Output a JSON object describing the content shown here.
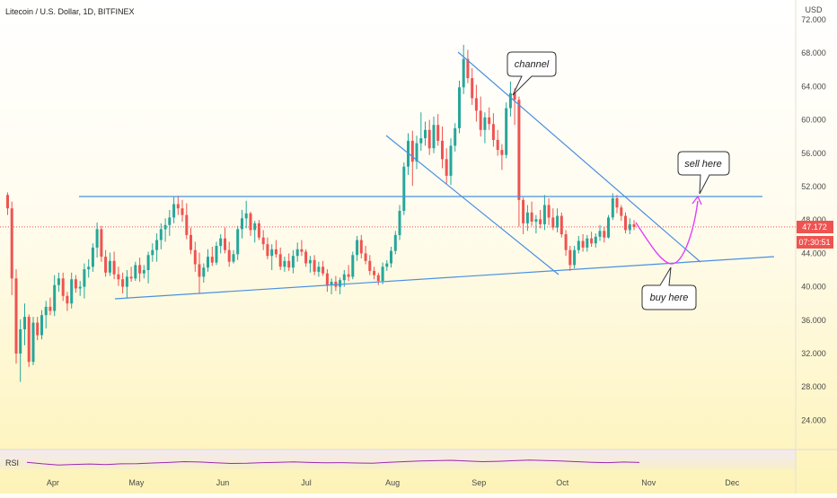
{
  "header": {
    "title": "Litecoin / U.S. Dollar, 1D, BITFINEX"
  },
  "chart_data": {
    "type": "candlestick",
    "title": "Litecoin / U.S. Dollar, 1D, BITFINEX",
    "y_axis": {
      "unit": "USD",
      "ticks": [
        "72.000",
        "68.000",
        "64.000",
        "60.000",
        "56.000",
        "52.000",
        "48.000",
        "44.000",
        "40.000",
        "36.000",
        "32.000",
        "28.000",
        "24.000"
      ],
      "ylim": [
        20.7,
        74.7
      ]
    },
    "x_axis": {
      "ticks": [
        "Apr",
        "May",
        "Jun",
        "Jul",
        "Aug",
        "Sep",
        "Oct",
        "Nov",
        "Dec"
      ],
      "xlim": [
        "2021-03-13",
        "2021-12-10"
      ]
    },
    "colors": {
      "up": "#26a69a",
      "down": "#ef5350",
      "trendline": "#4a90e2",
      "projection": "#e040fb",
      "rsi": "#9c27b0"
    },
    "price_tags": {
      "last_price": "47.172",
      "countdown": "07:30:51"
    },
    "candles_ohlc": [
      [
        51.0,
        51.3,
        48.6,
        49.4
      ],
      [
        49.4,
        50.2,
        39.0,
        41.0
      ],
      [
        41.0,
        42.1,
        30.8,
        32.0
      ],
      [
        32.0,
        36.1,
        28.6,
        34.9
      ],
      [
        34.9,
        38.0,
        33.0,
        36.4
      ],
      [
        36.4,
        36.7,
        30.4,
        31.0
      ],
      [
        31.0,
        36.4,
        30.6,
        35.7
      ],
      [
        35.7,
        36.4,
        33.6,
        34.2
      ],
      [
        34.2,
        37.2,
        33.7,
        36.6
      ],
      [
        36.6,
        38.3,
        35.0,
        37.6
      ],
      [
        37.6,
        38.7,
        36.6,
        37.1
      ],
      [
        37.1,
        41.4,
        36.5,
        40.2
      ],
      [
        40.2,
        41.7,
        39.4,
        41.0
      ],
      [
        41.0,
        41.7,
        38.3,
        38.9
      ],
      [
        38.9,
        39.4,
        37.1,
        38.0
      ],
      [
        38.0,
        41.7,
        37.4,
        40.9
      ],
      [
        40.9,
        41.4,
        39.3,
        39.8
      ],
      [
        39.8,
        40.7,
        38.9,
        40.0
      ],
      [
        40.0,
        42.8,
        38.6,
        42.1
      ],
      [
        42.1,
        43.3,
        41.1,
        42.4
      ],
      [
        42.4,
        45.2,
        41.8,
        44.7
      ],
      [
        44.7,
        47.7,
        43.5,
        46.9
      ],
      [
        46.9,
        47.3,
        43.0,
        43.6
      ],
      [
        43.6,
        44.4,
        41.2,
        41.7
      ],
      [
        41.7,
        44.1,
        41.3,
        43.1
      ],
      [
        43.1,
        44.2,
        40.9,
        41.5
      ],
      [
        41.5,
        42.4,
        40.1,
        40.9
      ],
      [
        40.9,
        41.7,
        39.2,
        40.0
      ],
      [
        40.0,
        42.0,
        38.6,
        41.2
      ],
      [
        41.2,
        42.4,
        40.6,
        41.0
      ],
      [
        41.0,
        43.0,
        40.7,
        42.6
      ],
      [
        42.6,
        43.5,
        40.6,
        41.6
      ],
      [
        41.6,
        42.6,
        41.0,
        42.0
      ],
      [
        42.0,
        44.2,
        40.4,
        43.8
      ],
      [
        43.8,
        45.2,
        43.0,
        44.4
      ],
      [
        44.4,
        46.4,
        43.0,
        45.6
      ],
      [
        45.6,
        47.6,
        44.5,
        46.9
      ],
      [
        46.9,
        48.2,
        45.4,
        47.4
      ],
      [
        47.4,
        49.2,
        46.1,
        48.3
      ],
      [
        48.3,
        50.8,
        47.6,
        49.9
      ],
      [
        49.9,
        50.9,
        48.6,
        49.4
      ],
      [
        49.4,
        50.4,
        47.8,
        48.6
      ],
      [
        48.6,
        50.0,
        45.7,
        46.2
      ],
      [
        46.2,
        47.1,
        43.9,
        44.4
      ],
      [
        44.4,
        45.4,
        41.8,
        42.7
      ],
      [
        42.7,
        44.1,
        39.2,
        41.2
      ],
      [
        41.2,
        42.8,
        40.5,
        42.3
      ],
      [
        42.3,
        44.5,
        41.8,
        43.6
      ],
      [
        43.6,
        44.8,
        42.5,
        42.9
      ],
      [
        42.9,
        45.4,
        42.6,
        44.9
      ],
      [
        44.9,
        46.3,
        44.0,
        45.8
      ],
      [
        45.8,
        47.1,
        44.0,
        44.4
      ],
      [
        44.4,
        45.4,
        42.4,
        43.0
      ],
      [
        43.0,
        44.4,
        42.8,
        43.9
      ],
      [
        43.9,
        47.3,
        43.2,
        46.9
      ],
      [
        46.9,
        49.2,
        45.8,
        48.2
      ],
      [
        48.2,
        50.3,
        47.0,
        48.8
      ],
      [
        48.8,
        49.0,
        46.1,
        46.8
      ],
      [
        46.8,
        47.9,
        45.3,
        47.6
      ],
      [
        47.6,
        48.0,
        45.6,
        45.9
      ],
      [
        45.9,
        46.8,
        44.4,
        45.1
      ],
      [
        45.1,
        45.9,
        43.3,
        43.7
      ],
      [
        43.7,
        45.1,
        42.0,
        44.5
      ],
      [
        44.5,
        45.6,
        43.5,
        43.9
      ],
      [
        43.9,
        44.7,
        42.0,
        42.4
      ],
      [
        42.4,
        43.6,
        41.8,
        43.1
      ],
      [
        43.1,
        44.0,
        41.9,
        42.3
      ],
      [
        42.3,
        44.4,
        41.6,
        43.7
      ],
      [
        43.7,
        45.3,
        43.0,
        44.5
      ],
      [
        44.5,
        45.6,
        43.7,
        44.2
      ],
      [
        44.2,
        44.5,
        42.4,
        42.8
      ],
      [
        42.8,
        43.7,
        41.7,
        43.2
      ],
      [
        43.2,
        43.8,
        41.4,
        41.8
      ],
      [
        41.8,
        43.0,
        41.2,
        42.4
      ],
      [
        42.4,
        43.1,
        41.3,
        41.6
      ],
      [
        41.6,
        42.1,
        39.4,
        40.2
      ],
      [
        40.2,
        41.0,
        39.1,
        40.6
      ],
      [
        40.6,
        41.3,
        39.5,
        40.0
      ],
      [
        40.0,
        41.1,
        39.1,
        40.8
      ],
      [
        40.8,
        42.0,
        40.0,
        41.5
      ],
      [
        41.5,
        42.6,
        40.7,
        41.2
      ],
      [
        41.2,
        44.2,
        40.9,
        43.8
      ],
      [
        43.8,
        46.1,
        43.1,
        45.6
      ],
      [
        45.6,
        46.2,
        43.4,
        44.0
      ],
      [
        44.0,
        44.9,
        42.7,
        43.1
      ],
      [
        43.1,
        43.8,
        41.4,
        41.9
      ],
      [
        41.9,
        42.4,
        40.9,
        41.4
      ],
      [
        41.4,
        41.7,
        40.2,
        40.7
      ],
      [
        40.7,
        42.9,
        40.3,
        42.4
      ],
      [
        42.4,
        43.2,
        41.9,
        42.8
      ],
      [
        42.8,
        44.8,
        42.3,
        44.3
      ],
      [
        44.3,
        46.7,
        43.9,
        46.2
      ],
      [
        46.2,
        49.8,
        45.6,
        49.1
      ],
      [
        49.1,
        54.9,
        48.6,
        54.4
      ],
      [
        54.4,
        58.4,
        53.4,
        57.5
      ],
      [
        57.5,
        58.7,
        52.1,
        55.0
      ],
      [
        55.0,
        58.1,
        54.1,
        57.2
      ],
      [
        57.2,
        60.9,
        56.3,
        57.8
      ],
      [
        57.8,
        59.8,
        56.9,
        58.8
      ],
      [
        58.8,
        60.0,
        55.8,
        56.6
      ],
      [
        56.6,
        60.4,
        56.0,
        59.4
      ],
      [
        59.4,
        60.7,
        56.9,
        57.5
      ],
      [
        57.5,
        59.2,
        54.2,
        55.3
      ],
      [
        55.3,
        56.6,
        52.3,
        53.3
      ],
      [
        53.3,
        57.8,
        52.2,
        56.9
      ],
      [
        56.9,
        59.6,
        56.2,
        59.0
      ],
      [
        59.0,
        64.7,
        58.4,
        63.9
      ],
      [
        63.9,
        69.0,
        63.1,
        67.3
      ],
      [
        67.3,
        68.4,
        64.4,
        65.0
      ],
      [
        65.0,
        66.2,
        61.8,
        62.6
      ],
      [
        62.6,
        64.2,
        59.8,
        61.1
      ],
      [
        61.1,
        62.8,
        58.0,
        58.8
      ],
      [
        58.8,
        60.9,
        57.2,
        60.3
      ],
      [
        60.3,
        61.5,
        58.8,
        59.5
      ],
      [
        59.5,
        60.8,
        56.8,
        57.6
      ],
      [
        57.6,
        58.8,
        55.7,
        56.4
      ],
      [
        56.4,
        57.1,
        54.0,
        55.8
      ],
      [
        55.8,
        62.1,
        55.4,
        61.4
      ],
      [
        61.4,
        64.6,
        60.4,
        63.2
      ],
      [
        63.2,
        63.8,
        59.4,
        62.4
      ],
      [
        62.4,
        62.8,
        47.2,
        50.4
      ],
      [
        50.4,
        50.7,
        46.3,
        47.6
      ],
      [
        47.6,
        49.8,
        46.7,
        48.9
      ],
      [
        48.9,
        50.2,
        47.3,
        47.8
      ],
      [
        47.8,
        48.6,
        46.4,
        48.1
      ],
      [
        48.1,
        49.2,
        47.0,
        47.5
      ],
      [
        47.5,
        51.0,
        46.8,
        49.8
      ],
      [
        49.8,
        50.6,
        47.4,
        48.3
      ],
      [
        48.3,
        49.4,
        46.8,
        47.1
      ],
      [
        47.1,
        49.4,
        46.5,
        48.5
      ],
      [
        48.5,
        48.9,
        45.9,
        46.3
      ],
      [
        46.3,
        46.8,
        43.7,
        44.4
      ],
      [
        44.4,
        44.9,
        41.9,
        42.6
      ],
      [
        42.6,
        44.9,
        42.2,
        44.4
      ],
      [
        44.4,
        46.1,
        44.0,
        45.5
      ],
      [
        45.5,
        46.3,
        44.2,
        44.7
      ],
      [
        44.7,
        46.2,
        44.2,
        45.8
      ],
      [
        45.8,
        46.6,
        44.8,
        45.2
      ],
      [
        45.2,
        46.4,
        44.7,
        46.0
      ],
      [
        46.0,
        47.4,
        45.5,
        46.7
      ],
      [
        46.7,
        47.2,
        45.3,
        45.9
      ],
      [
        45.9,
        48.6,
        45.8,
        48.3
      ],
      [
        48.3,
        51.2,
        48.0,
        50.6
      ],
      [
        50.6,
        51.0,
        48.8,
        49.5
      ],
      [
        49.5,
        49.8,
        47.9,
        48.5
      ],
      [
        48.5,
        48.9,
        46.4,
        46.8
      ],
      [
        46.8,
        48.2,
        46.3,
        47.5
      ],
      [
        47.5,
        48.0,
        46.8,
        47.17
      ]
    ],
    "rsi": {
      "label": "RSI",
      "values": [
        52,
        44,
        38,
        41,
        43,
        40,
        44,
        45,
        48,
        51,
        55,
        53,
        49,
        46,
        47,
        50,
        52,
        54,
        51,
        49,
        50,
        48,
        47,
        52,
        55,
        58,
        60,
        62,
        58,
        55,
        57,
        60,
        63,
        61,
        58,
        55,
        52,
        50,
        53,
        51
      ]
    },
    "annotations": [
      {
        "type": "callout",
        "text": "channel"
      },
      {
        "type": "callout",
        "text": "sell here"
      },
      {
        "type": "callout",
        "text": "buy here"
      }
    ]
  }
}
